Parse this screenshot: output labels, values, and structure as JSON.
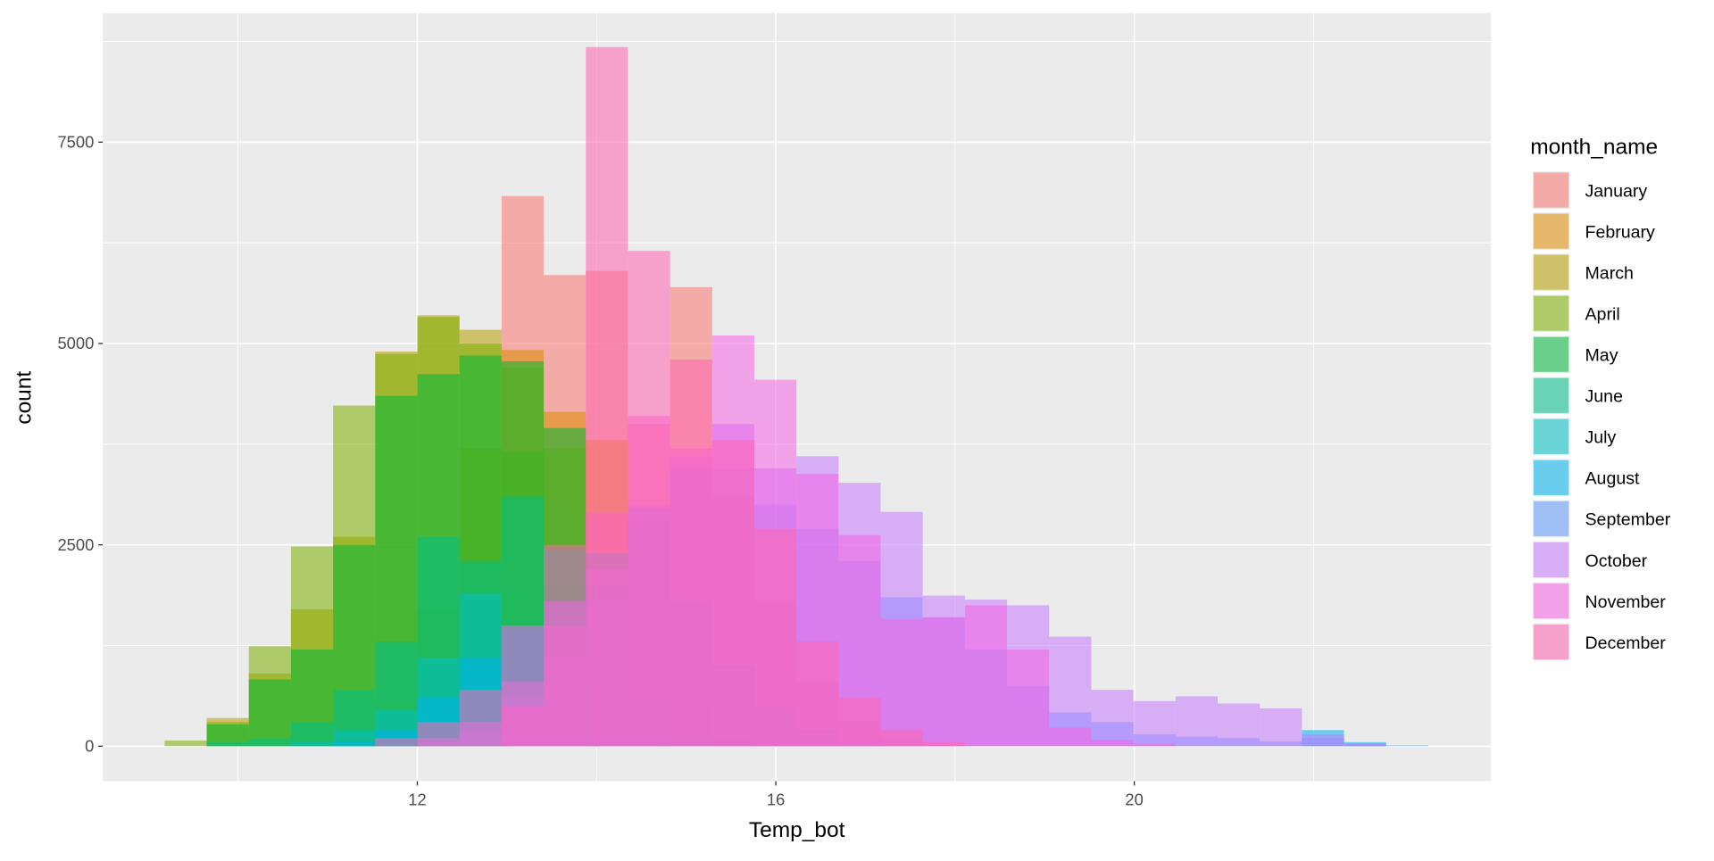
{
  "chart_data": {
    "type": "histogram",
    "x_label": "Temp_bot",
    "y_label": "count",
    "legend_title": "month_name",
    "bins": [
      9.18,
      9.65,
      10.12,
      10.59,
      11.06,
      11.53,
      12.0,
      12.47,
      12.94,
      13.41,
      13.88,
      14.35,
      14.82,
      15.29,
      15.76,
      16.23,
      16.7,
      17.17,
      17.64,
      18.11,
      18.58,
      19.05,
      19.52,
      19.99,
      20.46,
      20.93,
      21.4,
      21.87,
      22.34,
      22.81,
      23.28
    ],
    "series": [
      {
        "name": "January",
        "color": "#F8766D",
        "values": [
          0,
          0,
          0,
          0,
          0,
          50,
          200,
          1000,
          6830,
          5850,
          5900,
          4000,
          5700,
          3100,
          1800,
          800,
          300,
          100,
          0,
          0,
          0,
          0,
          0,
          0,
          0,
          0,
          0,
          0,
          0,
          0
        ]
      },
      {
        "name": "February",
        "color": "#DE8C00",
        "values": [
          0,
          0,
          0,
          0,
          100,
          500,
          1700,
          3700,
          4920,
          4150,
          3800,
          2800,
          1500,
          600,
          200,
          50,
          0,
          0,
          0,
          0,
          0,
          0,
          0,
          0,
          0,
          0,
          0,
          0,
          0,
          0
        ]
      },
      {
        "name": "March",
        "color": "#B79F00",
        "values": [
          0,
          350,
          900,
          1700,
          2600,
          4900,
          5350,
          5170,
          4700,
          3700,
          2400,
          1200,
          500,
          100,
          0,
          0,
          0,
          0,
          0,
          0,
          0,
          0,
          0,
          0,
          0,
          0,
          0,
          0,
          0,
          0
        ]
      },
      {
        "name": "April",
        "color": "#7CAE00",
        "values": [
          70,
          300,
          1240,
          2480,
          4230,
          4870,
          5330,
          5000,
          3650,
          2000,
          800,
          200,
          50,
          0,
          0,
          0,
          0,
          0,
          0,
          0,
          0,
          0,
          0,
          0,
          0,
          0,
          0,
          0,
          0,
          0
        ]
      },
      {
        "name": "May",
        "color": "#00BA38",
        "values": [
          0,
          270,
          830,
          1200,
          2500,
          4350,
          4620,
          4850,
          4780,
          3950,
          2000,
          600,
          100,
          0,
          0,
          0,
          0,
          0,
          0,
          0,
          0,
          0,
          0,
          0,
          0,
          0,
          0,
          0,
          0,
          0
        ]
      },
      {
        "name": "June",
        "color": "#00C08B",
        "values": [
          0,
          50,
          100,
          300,
          700,
          1300,
          2600,
          2300,
          3100,
          2450,
          1500,
          600,
          150,
          0,
          0,
          0,
          0,
          0,
          0,
          0,
          0,
          0,
          0,
          0,
          0,
          0,
          0,
          0,
          0,
          0
        ]
      },
      {
        "name": "July",
        "color": "#00BFC4",
        "values": [
          0,
          0,
          0,
          50,
          200,
          450,
          1100,
          1900,
          1450,
          1100,
          700,
          300,
          80,
          0,
          0,
          0,
          0,
          0,
          0,
          0,
          0,
          0,
          0,
          0,
          0,
          0,
          0,
          0,
          0,
          0
        ]
      },
      {
        "name": "August",
        "color": "#00B4F0",
        "values": [
          0,
          0,
          0,
          0,
          50,
          200,
          600,
          1100,
          1500,
          1800,
          2400,
          2950,
          1800,
          1000,
          500,
          200,
          50,
          0,
          0,
          0,
          0,
          0,
          0,
          0,
          0,
          0,
          0,
          200,
          50,
          10
        ]
      },
      {
        "name": "September",
        "color": "#619CFF",
        "values": [
          0,
          0,
          0,
          0,
          0,
          0,
          50,
          200,
          600,
          1100,
          1800,
          2800,
          3450,
          3450,
          3000,
          2700,
          2300,
          1850,
          1600,
          1200,
          750,
          420,
          300,
          150,
          120,
          100,
          60,
          100,
          30,
          0
        ]
      },
      {
        "name": "October",
        "color": "#C77CFF",
        "values": [
          0,
          0,
          0,
          0,
          0,
          0,
          100,
          300,
          800,
          1500,
          2200,
          3000,
          3600,
          4000,
          3450,
          3600,
          3270,
          2910,
          1870,
          1820,
          1750,
          1360,
          700,
          560,
          620,
          530,
          470,
          150,
          30,
          0
        ]
      },
      {
        "name": "November",
        "color": "#F564E3",
        "values": [
          0,
          0,
          0,
          0,
          0,
          0,
          0,
          0,
          500,
          1800,
          2900,
          4100,
          3700,
          5100,
          4550,
          3380,
          2620,
          1580,
          1600,
          1750,
          1200,
          230,
          80,
          30,
          0,
          0,
          0,
          0,
          0,
          0
        ]
      },
      {
        "name": "December",
        "color": "#FF64B0",
        "values": [
          0,
          0,
          0,
          0,
          0,
          100,
          300,
          700,
          1500,
          2500,
          8680,
          6150,
          4800,
          3800,
          2700,
          1300,
          600,
          200,
          50,
          0,
          0,
          0,
          0,
          0,
          0,
          0,
          0,
          0,
          0,
          0
        ]
      }
    ],
    "xlim": [
      8.49,
      23.98
    ],
    "ylim": [
      -434,
      9102
    ],
    "xticks": [
      12,
      16,
      20
    ],
    "yticks": [
      0,
      2500,
      5000,
      7500
    ],
    "grid": true,
    "legend": "right",
    "alpha": 0.55
  }
}
